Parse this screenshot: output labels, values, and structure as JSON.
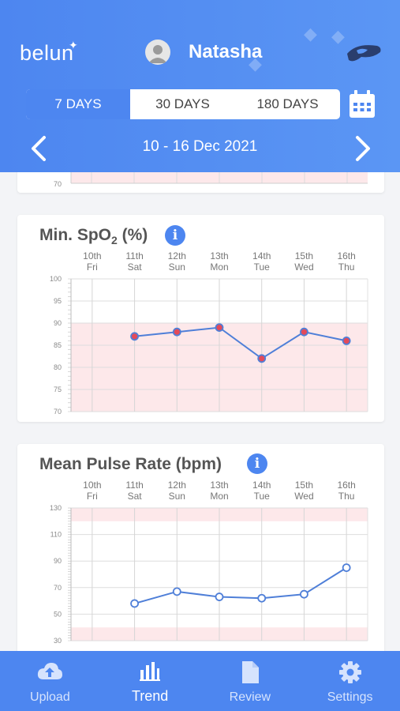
{
  "header": {
    "logo": "belun",
    "user_name": "Natasha",
    "range_tabs": [
      "7 DAYS",
      "30 DAYS",
      "180 DAYS"
    ],
    "active_range": "7 DAYS",
    "date_range": "10 - 16 Dec 2021",
    "icons": [
      "avatar-icon",
      "device-icon",
      "calendar-icon",
      "chevron-left-icon",
      "chevron-right-icon"
    ]
  },
  "top_card": {
    "visible_tick": "70"
  },
  "cards": [
    {
      "title_main": "Min. SpO",
      "title_sub": "2",
      "title_unit": " (%)"
    },
    {
      "title_main": "Mean Pulse Rate (bpm)",
      "title_sub": "",
      "title_unit": ""
    }
  ],
  "chart_data": [
    {
      "type": "line",
      "title": "Min. SpO2 (%)",
      "x_labels": [
        {
          "day": "10th",
          "weekday": "Fri"
        },
        {
          "day": "11th",
          "weekday": "Sat"
        },
        {
          "day": "12th",
          "weekday": "Sun"
        },
        {
          "day": "13th",
          "weekday": "Mon"
        },
        {
          "day": "14th",
          "weekday": "Tue"
        },
        {
          "day": "15th",
          "weekday": "Wed"
        },
        {
          "day": "16th",
          "weekday": "Thu"
        }
      ],
      "values": [
        null,
        87,
        88,
        89,
        82,
        88,
        86
      ],
      "ylim": [
        70,
        100
      ],
      "yticks": [
        "100",
        "95",
        "90",
        "85",
        "80",
        "75",
        "70"
      ],
      "shaded_bands": [
        [
          70,
          90
        ]
      ],
      "marker": "filled",
      "colors": {
        "line": "#4f7fd8",
        "marker_fill": "#e34a5a",
        "band": "#fde8ea"
      }
    },
    {
      "type": "line",
      "title": "Mean Pulse Rate (bpm)",
      "x_labels": [
        {
          "day": "10th",
          "weekday": "Fri"
        },
        {
          "day": "11th",
          "weekday": "Sat"
        },
        {
          "day": "12th",
          "weekday": "Sun"
        },
        {
          "day": "13th",
          "weekday": "Mon"
        },
        {
          "day": "14th",
          "weekday": "Tue"
        },
        {
          "day": "15th",
          "weekday": "Wed"
        },
        {
          "day": "16th",
          "weekday": "Thu"
        }
      ],
      "values": [
        null,
        58,
        67,
        63,
        62,
        65,
        85
      ],
      "ylim": [
        30,
        130
      ],
      "yticks": [
        "130",
        "110",
        "90",
        "70",
        "50",
        "30"
      ],
      "shaded_bands": [
        [
          120,
          130
        ],
        [
          30,
          40
        ]
      ],
      "marker": "hollow",
      "colors": {
        "line": "#4f7fd8",
        "marker_fill": "#ffffff",
        "band": "#fde8ea"
      }
    }
  ],
  "nav": [
    {
      "label": "Upload",
      "icon": "upload-cloud-icon"
    },
    {
      "label": "Trend",
      "icon": "bar-chart-icon"
    },
    {
      "label": "Review",
      "icon": "document-icon"
    },
    {
      "label": "Settings",
      "icon": "gear-icon"
    }
  ],
  "nav_active": "Trend"
}
